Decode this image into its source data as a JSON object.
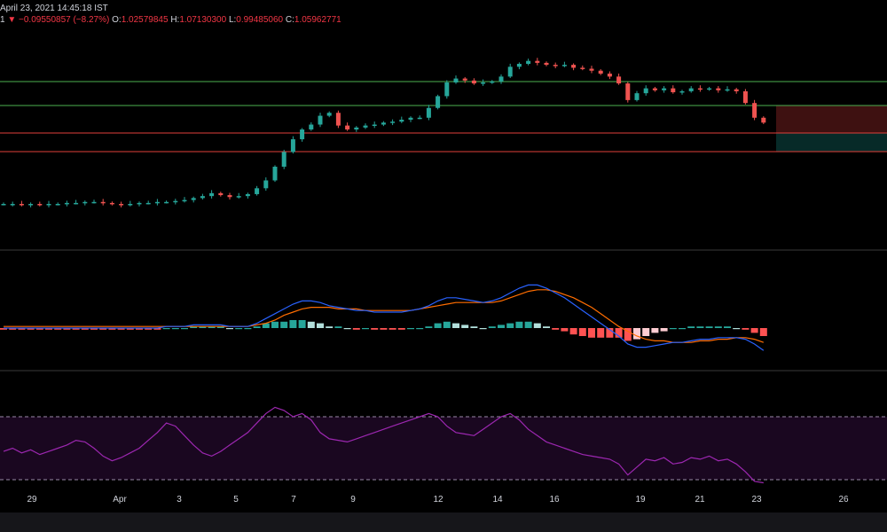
{
  "header": {
    "date": "April 23, 2021 14:45:18 IST",
    "series_marker": "1",
    "direction_icon": "triangle-down-icon",
    "change": "−0.09550857 (−8.27%)",
    "o_label": "O:",
    "o_value": "1.02579845",
    "h_label": "H:",
    "h_value": "1.07130300",
    "l_label": "L:",
    "l_value": "0.99485060",
    "c_label": "C:",
    "c_value": "1.05962771"
  },
  "colors": {
    "up": "#26a69a",
    "down": "#ef5350",
    "macd": "#2962ff",
    "signal": "#ff6d00",
    "rsi": "#9c27b0",
    "level_green": "#4caf50",
    "level_red": "#f23645",
    "background": "#000000"
  },
  "chart_data": {
    "type": "candlestick",
    "x_ticks": [
      "29",
      "Apr",
      "3",
      "5",
      "7",
      "9",
      "12",
      "14",
      "16",
      "19",
      "21",
      "23",
      "26"
    ],
    "horizontal_levels": [
      {
        "value": 1.42,
        "color": "green"
      },
      {
        "value": 1.27,
        "color": "green"
      },
      {
        "value": 1.11,
        "color": "red"
      },
      {
        "value": 1.0,
        "color": "red"
      }
    ],
    "position_zones": {
      "loss_range": [
        1.11,
        1.27
      ],
      "profit_range": [
        1.0,
        1.11
      ]
    },
    "candles_close": [
      0.32,
      0.32,
      0.31,
      0.32,
      0.31,
      0.32,
      0.32,
      0.33,
      0.33,
      0.34,
      0.34,
      0.33,
      0.32,
      0.31,
      0.32,
      0.33,
      0.33,
      0.34,
      0.34,
      0.35,
      0.36,
      0.38,
      0.4,
      0.43,
      0.41,
      0.39,
      0.4,
      0.42,
      0.48,
      0.56,
      0.7,
      0.85,
      0.98,
      1.08,
      1.13,
      1.22,
      1.25,
      1.12,
      1.08,
      1.1,
      1.12,
      1.13,
      1.15,
      1.16,
      1.18,
      1.2,
      1.2,
      1.3,
      1.42,
      1.56,
      1.6,
      1.58,
      1.55,
      1.56,
      1.57,
      1.62,
      1.72,
      1.75,
      1.78,
      1.76,
      1.74,
      1.73,
      1.74,
      1.71,
      1.7,
      1.68,
      1.65,
      1.62,
      1.55,
      1.38,
      1.45,
      1.5,
      1.48,
      1.5,
      1.46,
      1.47,
      1.5,
      1.49,
      1.5,
      1.48,
      1.49,
      1.47,
      1.35,
      1.2,
      1.15
    ],
    "macd_line": [
      0.0,
      0.0,
      0.0,
      0.0,
      0.0,
      0.0,
      0.0,
      0.0,
      0.0,
      0.0,
      0.0,
      0.0,
      0.0,
      0.0,
      0.0,
      0.0,
      0.0,
      0.0,
      0.01,
      0.01,
      0.01,
      0.02,
      0.02,
      0.02,
      0.02,
      0.01,
      0.01,
      0.01,
      0.03,
      0.06,
      0.09,
      0.12,
      0.15,
      0.17,
      0.17,
      0.16,
      0.14,
      0.13,
      0.12,
      0.11,
      0.11,
      0.1,
      0.1,
      0.1,
      0.1,
      0.11,
      0.12,
      0.14,
      0.17,
      0.19,
      0.19,
      0.18,
      0.17,
      0.16,
      0.17,
      0.19,
      0.22,
      0.25,
      0.27,
      0.27,
      0.25,
      0.22,
      0.19,
      0.15,
      0.11,
      0.07,
      0.03,
      -0.01,
      -0.05,
      -0.1,
      -0.12,
      -0.12,
      -0.11,
      -0.1,
      -0.09,
      -0.09,
      -0.08,
      -0.07,
      -0.07,
      -0.06,
      -0.06,
      -0.06,
      -0.07,
      -0.1,
      -0.14
    ],
    "signal_line": [
      0.01,
      0.01,
      0.01,
      0.01,
      0.01,
      0.01,
      0.01,
      0.01,
      0.01,
      0.01,
      0.01,
      0.01,
      0.01,
      0.01,
      0.01,
      0.01,
      0.01,
      0.01,
      0.01,
      0.01,
      0.01,
      0.01,
      0.01,
      0.01,
      0.01,
      0.01,
      0.01,
      0.01,
      0.02,
      0.03,
      0.05,
      0.08,
      0.1,
      0.12,
      0.13,
      0.13,
      0.13,
      0.12,
      0.12,
      0.12,
      0.11,
      0.11,
      0.11,
      0.11,
      0.11,
      0.11,
      0.12,
      0.13,
      0.14,
      0.15,
      0.16,
      0.16,
      0.16,
      0.16,
      0.16,
      0.17,
      0.19,
      0.21,
      0.23,
      0.24,
      0.24,
      0.23,
      0.21,
      0.19,
      0.16,
      0.13,
      0.09,
      0.05,
      0.01,
      -0.02,
      -0.05,
      -0.07,
      -0.08,
      -0.08,
      -0.09,
      -0.09,
      -0.09,
      -0.08,
      -0.08,
      -0.07,
      -0.07,
      -0.06,
      -0.06,
      -0.07,
      -0.09
    ],
    "histogram": [
      -0.01,
      -0.01,
      -0.01,
      -0.01,
      -0.01,
      -0.01,
      -0.01,
      -0.01,
      -0.01,
      -0.01,
      -0.01,
      -0.01,
      -0.01,
      -0.01,
      -0.01,
      -0.01,
      -0.01,
      -0.01,
      0.0,
      0.0,
      0.0,
      0.01,
      0.01,
      0.01,
      0.01,
      0.0,
      0.0,
      0.0,
      0.01,
      0.03,
      0.04,
      0.04,
      0.05,
      0.05,
      0.04,
      0.03,
      0.01,
      0.01,
      0.0,
      -0.01,
      0.0,
      -0.01,
      -0.01,
      -0.01,
      -0.01,
      0.0,
      0.0,
      0.01,
      0.03,
      0.04,
      0.03,
      0.02,
      0.01,
      0.0,
      0.01,
      0.02,
      0.03,
      0.04,
      0.04,
      0.03,
      0.01,
      -0.01,
      -0.02,
      -0.04,
      -0.05,
      -0.06,
      -0.06,
      -0.06,
      -0.06,
      -0.08,
      -0.07,
      -0.05,
      -0.03,
      -0.02,
      0.0,
      0.0,
      0.01,
      0.01,
      0.01,
      0.01,
      0.01,
      0.0,
      -0.01,
      -0.03,
      -0.05
    ],
    "rsi": [
      48,
      50,
      47,
      49,
      46,
      48,
      50,
      52,
      55,
      54,
      50,
      45,
      42,
      44,
      47,
      50,
      55,
      60,
      66,
      64,
      58,
      52,
      47,
      45,
      48,
      52,
      56,
      60,
      66,
      72,
      76,
      74,
      70,
      72,
      68,
      60,
      56,
      55,
      54,
      56,
      58,
      60,
      62,
      64,
      66,
      68,
      70,
      72,
      70,
      64,
      60,
      59,
      58,
      62,
      66,
      70,
      72,
      68,
      62,
      58,
      54,
      52,
      50,
      48,
      46,
      45,
      44,
      43,
      40,
      33,
      38,
      43,
      42,
      44,
      40,
      41,
      44,
      43,
      45,
      42,
      43,
      40,
      35,
      29,
      28
    ],
    "rsi_bands": {
      "upper": 70,
      "lower": 30
    }
  }
}
